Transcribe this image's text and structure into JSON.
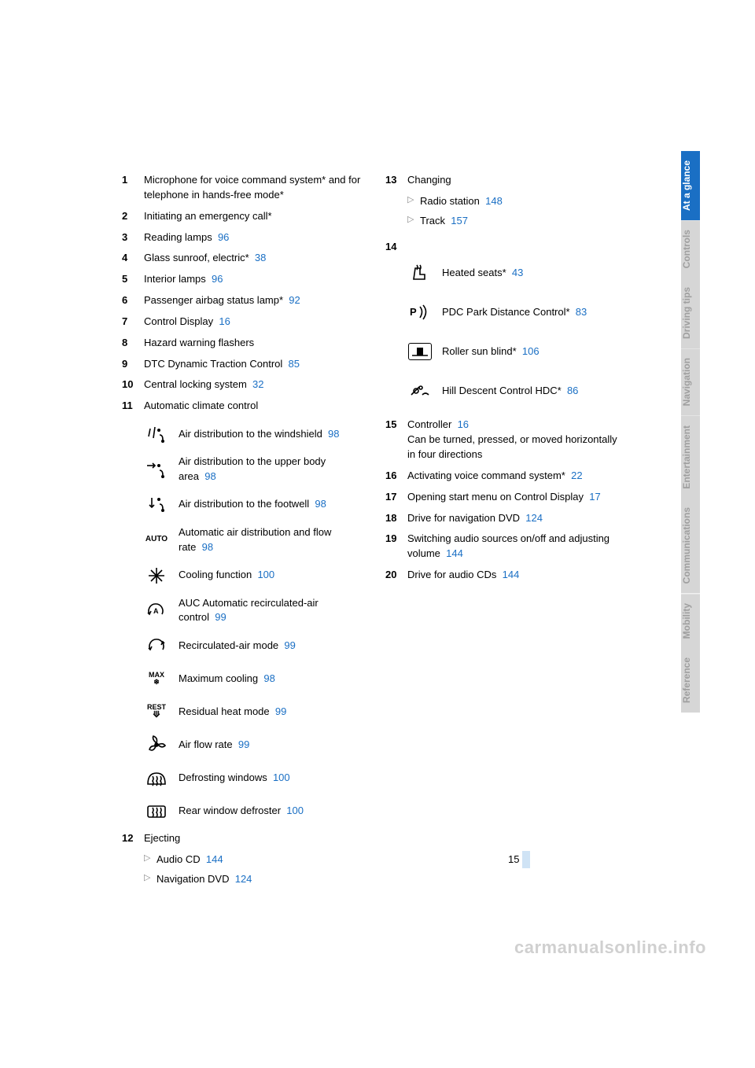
{
  "page_number": "15",
  "watermark": "carmanualsonline.info",
  "tabs": [
    {
      "label": "At a glance",
      "active": true
    },
    {
      "label": "Controls",
      "active": false
    },
    {
      "label": "Driving tips",
      "active": false
    },
    {
      "label": "Navigation",
      "active": false
    },
    {
      "label": "Entertainment",
      "active": false
    },
    {
      "label": "Communications",
      "active": false
    },
    {
      "label": "Mobility",
      "active": false
    },
    {
      "label": "Reference",
      "active": false
    }
  ],
  "link_color": "#1a6fc4",
  "left": [
    {
      "n": "1",
      "text": "Microphone for voice command system* and for telephone in hands-free mode*"
    },
    {
      "n": "2",
      "text": "Initiating an emergency call*"
    },
    {
      "n": "3",
      "text": "Reading lamps",
      "page": "96"
    },
    {
      "n": "4",
      "text": "Glass sunroof, electric*",
      "page": "38"
    },
    {
      "n": "5",
      "text": "Interior lamps",
      "page": "96"
    },
    {
      "n": "6",
      "text": "Passenger airbag status lamp*",
      "page": "92"
    },
    {
      "n": "7",
      "text": "Control Display",
      "page": "16"
    },
    {
      "n": "8",
      "text": "Hazard warning flashers"
    },
    {
      "n": "9",
      "text": "DTC Dynamic Traction Control",
      "page": "85"
    },
    {
      "n": "10",
      "text": "Central locking system",
      "page": "32"
    },
    {
      "n": "11",
      "text": "Automatic climate control"
    }
  ],
  "climate": [
    {
      "icon": "air-windshield",
      "text": "Air distribution to the windshield",
      "page": "98"
    },
    {
      "icon": "air-upper",
      "text": "Air distribution to the upper body area",
      "page": "98"
    },
    {
      "icon": "air-footwell",
      "text": "Air distribution to the footwell",
      "page": "98"
    },
    {
      "icon": "auto",
      "text": "Automatic air distribution and flow rate",
      "page": "98"
    },
    {
      "icon": "snowflake",
      "text": "Cooling function",
      "page": "100"
    },
    {
      "icon": "auc",
      "text": "AUC Automatic recirculated-air control",
      "page": "99"
    },
    {
      "icon": "recirc",
      "text": "Recirculated-air mode",
      "page": "99"
    },
    {
      "icon": "max",
      "text": "Maximum cooling",
      "page": "98"
    },
    {
      "icon": "rest",
      "text": "Residual heat mode",
      "page": "99"
    },
    {
      "icon": "fan",
      "text": "Air flow rate",
      "page": "99"
    },
    {
      "icon": "defrost-front",
      "text": "Defrosting windows",
      "page": "100"
    },
    {
      "icon": "defrost-rear",
      "text": "Rear window defroster",
      "page": "100"
    }
  ],
  "left12": {
    "n": "12",
    "text": "Ejecting",
    "sub": [
      {
        "text": "Audio CD",
        "page": "144"
      },
      {
        "text": "Navigation DVD",
        "page": "124"
      }
    ]
  },
  "right13": {
    "n": "13",
    "text": "Changing",
    "sub": [
      {
        "text": "Radio station",
        "page": "148"
      },
      {
        "text": "Track",
        "page": "157"
      }
    ]
  },
  "right14": {
    "n": "14",
    "items": [
      {
        "icon": "seat-heat",
        "text": "Heated seats*",
        "page": "43"
      },
      {
        "icon": "pdc",
        "text": "PDC Park Distance Control*",
        "page": "83"
      },
      {
        "icon": "sunblind",
        "text": "Roller sun blind*",
        "page": "106"
      },
      {
        "icon": "hdc",
        "text": "Hill Descent Control HDC*",
        "page": "86"
      }
    ]
  },
  "right_rest": [
    {
      "n": "15",
      "text": "Controller",
      "page": "16",
      "extra": "Can be turned, pressed, or moved horizontally in four directions"
    },
    {
      "n": "16",
      "text": "Activating voice command system*",
      "page": "22"
    },
    {
      "n": "17",
      "text": "Opening start menu on Control Display",
      "page": "17"
    },
    {
      "n": "18",
      "text": "Drive for navigation DVD",
      "page": "124"
    },
    {
      "n": "19",
      "text": "Switching audio sources on/off and adjusting volume",
      "page": "144"
    },
    {
      "n": "20",
      "text": "Drive for audio CDs",
      "page": "144"
    }
  ]
}
